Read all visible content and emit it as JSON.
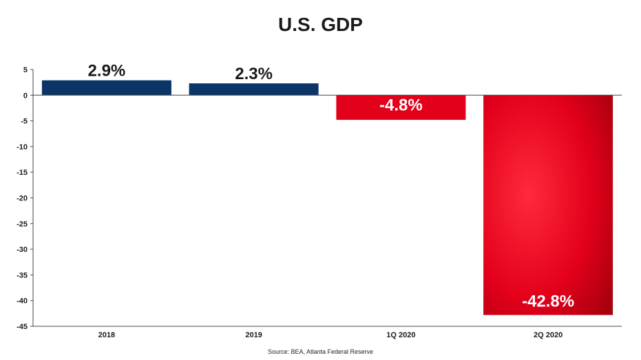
{
  "chart_data": {
    "type": "bar",
    "title": "U.S. GDP",
    "source": "Source: BEA, Atlanta Federal Reserve",
    "categories": [
      "2018",
      "2019",
      "1Q 2020",
      "2Q 2020"
    ],
    "values": [
      2.9,
      2.3,
      -4.8,
      -42.8
    ],
    "data_labels": [
      "2.9%",
      "2.3%",
      "-4.8%",
      "-42.8%"
    ],
    "ylim": [
      -45,
      5
    ],
    "yticks": [
      5,
      0,
      -5,
      -10,
      -15,
      -20,
      -25,
      -30,
      -35,
      -40,
      -45
    ],
    "xlabel": "",
    "ylabel": "",
    "grid": false,
    "legend": "none",
    "colors": {
      "positive": "#0a3566",
      "negative": "#e3001b",
      "negative_dark": "#b3000f",
      "axis": "#444444",
      "text": "#1a1a1a"
    }
  }
}
